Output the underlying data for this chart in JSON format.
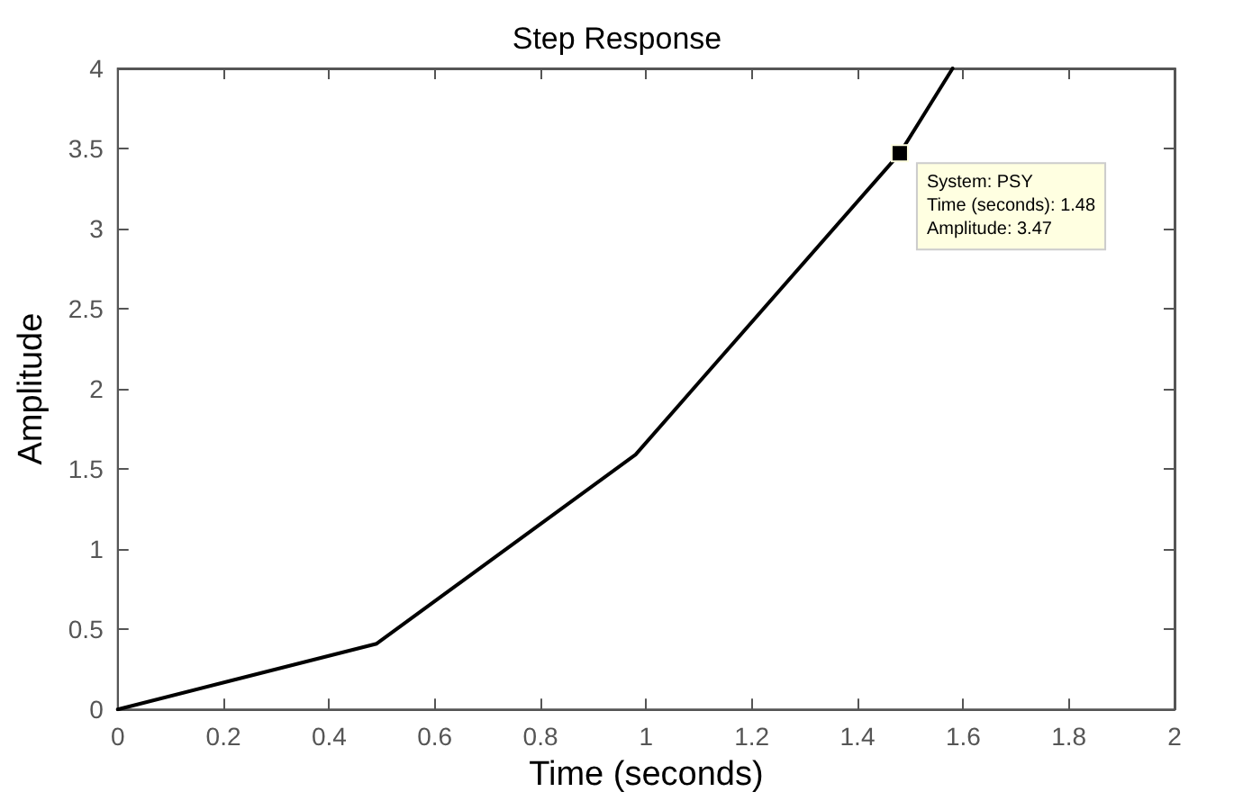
{
  "chart_data": {
    "type": "line",
    "title": "Step Response",
    "xlabel": "Time (seconds)",
    "ylabel": "Amplitude",
    "x": [
      0,
      0.49,
      0.98,
      1.48,
      1.58
    ],
    "series": [
      {
        "color": "#000000",
        "values": [
          0,
          0.41,
          1.59,
          3.47,
          4.0
        ]
      }
    ],
    "xlim": [
      0,
      2
    ],
    "xticks": [
      0,
      0.2,
      0.4,
      0.6,
      0.8,
      1,
      1.2,
      1.4,
      1.6,
      1.8,
      2
    ],
    "ylim": [
      0,
      4
    ],
    "yticks": [
      0,
      0.5,
      1,
      1.5,
      2,
      2.5,
      3,
      3.5,
      4
    ],
    "grid": false,
    "marker": "none",
    "line_style": "solid",
    "annotations": [
      {
        "text": "System: PSY\nTime (seconds): 1.48\nAmplitude: 3.47",
        "x": 1.48,
        "y": 3.47
      }
    ]
  }
}
